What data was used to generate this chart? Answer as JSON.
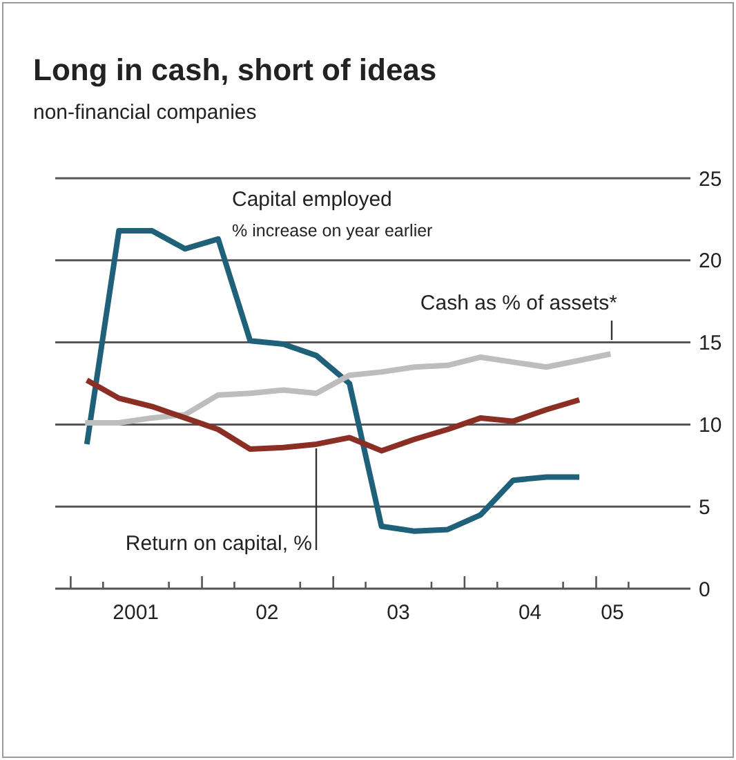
{
  "chart_data": {
    "type": "line",
    "title": "Long in cash, short of ideas",
    "subtitle": "non-financial companies",
    "annotations": [
      "% increase on year earlier"
    ],
    "xlim": [
      "2000-11-19",
      "2005-09-20"
    ],
    "xticks": [
      {
        "value": "2001-01-01",
        "label": null
      },
      {
        "value": "2001-04-01",
        "label": null
      },
      {
        "value": "2001-07-01",
        "label": "2001"
      },
      {
        "value": "2001-10-01",
        "label": null
      },
      {
        "value": "2002-01-01",
        "label": null
      },
      {
        "value": "2002-04-01",
        "label": null
      },
      {
        "value": "2002-07-01",
        "label": "02"
      },
      {
        "value": "2002-10-01",
        "label": null
      },
      {
        "value": "2003-01-01",
        "label": null
      },
      {
        "value": "2003-04-01",
        "label": null
      },
      {
        "value": "2003-07-01",
        "label": "03"
      },
      {
        "value": "2003-10-01",
        "label": null
      },
      {
        "value": "2004-01-01",
        "label": null
      },
      {
        "value": "2004-04-01",
        "label": null
      },
      {
        "value": "2004-07-01",
        "label": "04"
      },
      {
        "value": "2004-10-01",
        "label": null
      },
      {
        "value": "2005-01-01",
        "label": null
      },
      {
        "value": "2005-02-15",
        "label": "05"
      },
      {
        "value": "2005-04-01",
        "label": null
      }
    ],
    "ylim": [
      0,
      25
    ],
    "yticks": [
      0,
      5,
      10,
      15,
      20,
      25
    ],
    "grid": "y",
    "line_style": "solid",
    "marker": "none",
    "series": [
      {
        "name": "Capital employed",
        "color": "#1e6178",
        "x": [
          "2001-02-15",
          "2001-05-15",
          "2001-08-15",
          "2001-11-15",
          "2002-02-15",
          "2002-05-15",
          "2002-08-15",
          "2002-11-15",
          "2003-02-15",
          "2003-05-15",
          "2003-08-15",
          "2003-11-15",
          "2004-02-15",
          "2004-05-15",
          "2004-08-15",
          "2004-11-15"
        ],
        "values": [
          8.8,
          21.8,
          21.8,
          20.7,
          21.3,
          15.1,
          14.9,
          14.2,
          12.5,
          3.8,
          3.5,
          3.6,
          4.5,
          6.6,
          6.8,
          6.8
        ]
      },
      {
        "name": "Cash as % of assets*",
        "color": "#bdbdbd",
        "x": [
          "2001-02-10",
          "2001-05-15",
          "2001-08-15",
          "2001-11-15",
          "2002-02-15",
          "2002-05-15",
          "2002-08-15",
          "2002-11-15",
          "2003-02-15",
          "2003-05-15",
          "2003-08-15",
          "2003-11-15",
          "2004-02-15",
          "2004-05-15",
          "2004-08-15",
          "2004-11-15",
          "2005-02-10"
        ],
        "values": [
          10.1,
          10.1,
          10.4,
          10.6,
          11.8,
          11.9,
          12.1,
          11.9,
          13.0,
          13.2,
          13.5,
          13.6,
          14.1,
          13.8,
          13.5,
          13.9,
          14.3
        ]
      },
      {
        "name": "Return on capital, %",
        "color": "#8b2e24",
        "x": [
          "2001-02-15",
          "2001-05-15",
          "2001-08-15",
          "2001-11-15",
          "2002-02-15",
          "2002-05-15",
          "2002-08-15",
          "2002-11-15",
          "2003-02-15",
          "2003-05-15",
          "2003-08-15",
          "2003-11-15",
          "2004-02-15",
          "2004-05-15",
          "2004-08-15",
          "2004-11-15"
        ],
        "values": [
          12.7,
          11.6,
          11.1,
          10.4,
          9.7,
          8.5,
          8.6,
          8.8,
          9.2,
          8.4,
          9.1,
          9.7,
          10.4,
          10.2,
          10.9,
          11.5
        ]
      }
    ]
  }
}
